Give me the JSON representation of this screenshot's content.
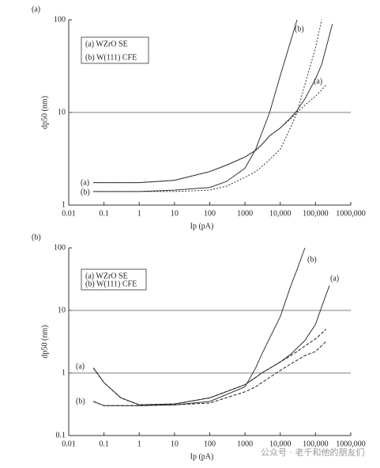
{
  "chart_data": [
    {
      "type": "line",
      "panel_label": "(a)",
      "xlabel": "Ip (pA)",
      "ylabel": "dp50 (nm)",
      "log_x": true,
      "log_y": true,
      "grid": "interior",
      "xlim": [
        0.01,
        1000000
      ],
      "ylim": [
        1,
        100
      ],
      "xticks": [
        0.01,
        0.1,
        1,
        10,
        100,
        1000,
        {
          "value": 10000,
          "label": "10,000"
        },
        {
          "value": 100000,
          "label": "100,000"
        },
        {
          "value": 1000000,
          "label": "1000,000"
        }
      ],
      "yticks": [
        1,
        10,
        100
      ],
      "legend": [
        "(a) WZrO SE",
        "(b) W(111) CFE"
      ],
      "annotations": [
        "(a)",
        "(b)",
        "(b)",
        "(a)"
      ],
      "x": [
        0.05,
        0.1,
        1,
        10,
        100,
        300,
        1000,
        2000,
        3000,
        5000,
        10000,
        20000,
        30000,
        50000,
        100000,
        150000,
        200000,
        300000
      ],
      "series": [
        {
          "color": "#333",
          "dash": "solid",
          "values": [
            1.75,
            1.75,
            1.75,
            1.85,
            2.3,
            2.7,
            3.3,
            3.9,
            4.5,
            5.6,
            6.8,
            8.8,
            10.5,
            14,
            23,
            33,
            50,
            90
          ]
        },
        {
          "color": "#333",
          "dash": "dotted",
          "values": [
            1.75,
            1.75,
            1.75,
            1.85,
            2.3,
            2.7,
            3.3,
            3.9,
            4.5,
            5.6,
            6.8,
            8.6,
            10,
            12,
            15,
            17.5,
            20,
            null
          ]
        },
        {
          "color": "#333",
          "dash": "solid",
          "values": [
            1.4,
            1.4,
            1.4,
            1.45,
            1.55,
            1.8,
            2.5,
            4,
            6,
            10,
            25,
            60,
            100,
            null,
            null,
            null,
            null,
            null
          ]
        },
        {
          "color": "#333",
          "dash": "dotted",
          "values": [
            1.4,
            1.4,
            1.4,
            1.4,
            1.45,
            1.6,
            2.0,
            2.3,
            2.6,
            3.1,
            4,
            7,
            10,
            20,
            50,
            100,
            null,
            null
          ]
        }
      ]
    },
    {
      "type": "line",
      "panel_label": "(b)",
      "xlabel": "Ip (pA)",
      "ylabel": "dp50 (nm)",
      "log_x": true,
      "log_y": true,
      "grid": "interior",
      "xlim": [
        0.01,
        1000000
      ],
      "ylim": [
        0.1,
        100
      ],
      "xticks": [
        0.01,
        0.1,
        1,
        10,
        100,
        1000,
        {
          "value": 10000,
          "label": "10,000"
        },
        {
          "value": 100000,
          "label": "100,000"
        },
        {
          "value": 1000000,
          "label": "1000,000"
        }
      ],
      "yticks": [
        0.1,
        1,
        10,
        100
      ],
      "legend": [
        "(a) WZrO SE",
        "(b) W(111) CFE"
      ],
      "annotations": [
        "(a)",
        "(b)",
        "(b)",
        "(a)"
      ],
      "x": [
        0.05,
        0.1,
        0.3,
        1,
        10,
        100,
        1000,
        2000,
        3000,
        10000,
        20000,
        30000,
        50000,
        100000,
        200000,
        250000
      ],
      "series": [
        {
          "color": "#333",
          "dash": "solid",
          "values": [
            1.2,
            0.7,
            0.4,
            0.31,
            0.32,
            0.4,
            0.65,
            0.85,
            1.0,
            1.5,
            2.0,
            2.5,
            3.3,
            6,
            18,
            25
          ]
        },
        {
          "color": "#222",
          "dash": "dashed",
          "values": [
            1.2,
            0.7,
            0.4,
            0.31,
            0.32,
            0.4,
            0.65,
            0.85,
            1.0,
            1.5,
            1.9,
            2.2,
            2.7,
            3.5,
            5,
            null
          ]
        },
        {
          "color": "#333",
          "dash": "solid",
          "values": [
            0.35,
            0.3,
            0.3,
            0.3,
            0.31,
            0.35,
            0.6,
            1.2,
            2,
            8,
            25,
            45,
            100,
            null,
            null,
            null
          ]
        },
        {
          "color": "#222",
          "dash": "dashed",
          "values": [
            0.35,
            0.3,
            0.3,
            0.3,
            0.31,
            0.33,
            0.5,
            0.6,
            0.7,
            1.1,
            1.4,
            1.6,
            1.9,
            2.2,
            3.2,
            null
          ]
        }
      ]
    }
  ],
  "watermark": "公众号 · 老千和他的朋友们"
}
